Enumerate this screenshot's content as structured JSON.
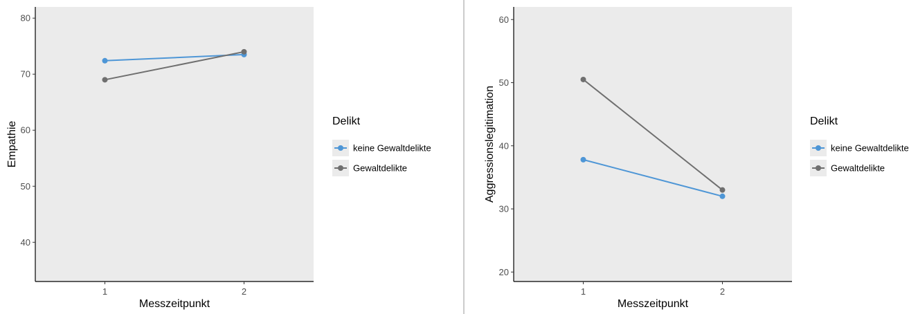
{
  "chart_data": [
    {
      "type": "line",
      "title": "",
      "xlabel": "Messzeitpunkt",
      "ylabel": "Empathie",
      "categories": [
        "1",
        "2"
      ],
      "xlim": [
        0.5,
        2.5
      ],
      "ylim": [
        33,
        82
      ],
      "yticks": [
        40,
        50,
        60,
        70,
        80
      ],
      "grid": false,
      "legend": {
        "title": "Delikt",
        "position": "right"
      },
      "series": [
        {
          "name": "keine Gewaltdelikte",
          "values": [
            72.4,
            73.5
          ],
          "color": "#4e96d6"
        },
        {
          "name": "Gewaltdelikte",
          "values": [
            69.0,
            74.0
          ],
          "color": "#6f6f6f"
        }
      ]
    },
    {
      "type": "line",
      "title": "",
      "xlabel": "Messzeitpunkt",
      "ylabel": "Aggressionslegitimation",
      "categories": [
        "1",
        "2"
      ],
      "xlim": [
        0.5,
        2.5
      ],
      "ylim": [
        18.5,
        62
      ],
      "yticks": [
        20,
        30,
        40,
        50,
        60
      ],
      "grid": false,
      "legend": {
        "title": "Delikt",
        "position": "right"
      },
      "series": [
        {
          "name": "keine Gewaltdelikte",
          "values": [
            37.8,
            32.0
          ],
          "color": "#4e96d6"
        },
        {
          "name": "Gewaltdelikte",
          "values": [
            50.5,
            33.0
          ],
          "color": "#6f6f6f"
        }
      ]
    }
  ],
  "style": {
    "panel_background": "#ebebeb",
    "divider_color": "#9a9a9a"
  }
}
